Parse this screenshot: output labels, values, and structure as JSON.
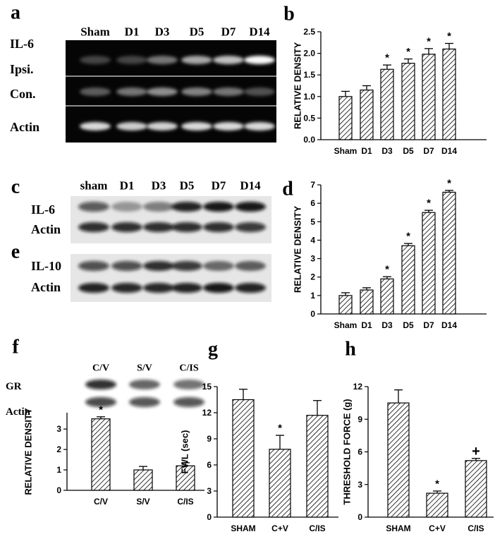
{
  "gels": [
    {
      "label": "a",
      "lanes": [
        "Sham",
        "D1",
        "D3",
        "D5",
        "D7",
        "D14"
      ],
      "rows": [
        "IL-6",
        "Ipsi.",
        "Con.",
        "Actin"
      ]
    },
    {
      "label": "c",
      "lanes": [
        "sham",
        "D1",
        "D3",
        "D5",
        "D7",
        "D14"
      ],
      "rows": [
        "IL-6",
        "Actin"
      ]
    },
    {
      "label": "e",
      "rows": [
        "IL-10",
        "Actin"
      ]
    },
    {
      "label": "f",
      "lanes": [
        "C/V",
        "S/V",
        "C/IS"
      ],
      "rows": [
        "GR",
        "Actin"
      ]
    }
  ],
  "chart_data": [
    {
      "type": "bar",
      "label": "b",
      "y_label": "RELATIVE  DENSITY",
      "categories": [
        "Sham",
        "D1",
        "D3",
        "D5",
        "D7",
        "D14"
      ],
      "values": [
        1.0,
        1.15,
        1.63,
        1.77,
        1.98,
        2.1
      ],
      "errors": [
        0.12,
        0.1,
        0.1,
        0.1,
        0.13,
        0.13
      ],
      "marks": [
        null,
        null,
        "*",
        "*",
        "*",
        "*"
      ],
      "ylim": [
        0,
        2.5
      ],
      "yticks": [
        {
          "value": 0,
          "label": "0.0"
        },
        0.5,
        {
          "value": 1,
          "label": "1.0"
        },
        1.5,
        {
          "value": 2,
          "label": "2.0"
        },
        2.5
      ]
    },
    {
      "type": "bar",
      "label": "d",
      "y_label": "RELATIVE  DENSITY",
      "categories": [
        "Sham",
        "D1",
        "D3",
        "D5",
        "D7",
        "D14"
      ],
      "values": [
        1.0,
        1.3,
        1.9,
        3.7,
        5.5,
        6.6
      ],
      "errors": [
        0.15,
        0.12,
        0.12,
        0.12,
        0.12,
        0.1
      ],
      "marks": [
        null,
        null,
        "*",
        "*",
        "*",
        "*"
      ],
      "ylim": [
        0,
        7
      ],
      "yticks": [
        0,
        1,
        2,
        3,
        4,
        5,
        6,
        7
      ]
    },
    {
      "type": "bar",
      "y_label": "RELATIVE DENSITY",
      "categories": [
        "C/V",
        "S/V",
        "C/IS"
      ],
      "values": [
        3.5,
        1.0,
        1.2
      ],
      "errors": [
        0.1,
        0.17,
        0.15
      ],
      "marks": [
        "*",
        null,
        null
      ],
      "ylim": [
        0,
        3.8
      ],
      "yticks": [
        0,
        1,
        2,
        3
      ]
    },
    {
      "type": "bar",
      "label": "g",
      "y_label": "FWL (sec)",
      "categories": [
        "SHAM",
        "C+V",
        "C/IS"
      ],
      "values": [
        13.5,
        7.8,
        11.7
      ],
      "errors": [
        1.2,
        1.6,
        1.7
      ],
      "marks": [
        null,
        "*",
        null
      ],
      "ylim": [
        0,
        15
      ],
      "yticks": [
        0,
        3,
        6,
        9,
        12,
        15
      ]
    },
    {
      "type": "bar",
      "label": "h",
      "y_label": "THRESHOLD FORCE (g)",
      "categories": [
        "SHAM",
        "C+V",
        "C/IS"
      ],
      "values": [
        10.5,
        2.2,
        5.2
      ],
      "errors": [
        1.2,
        0.2,
        0.2
      ],
      "marks": [
        null,
        "*",
        "+"
      ],
      "ylim": [
        0,
        12
      ],
      "yticks": [
        0,
        3,
        6,
        9,
        12
      ]
    }
  ]
}
